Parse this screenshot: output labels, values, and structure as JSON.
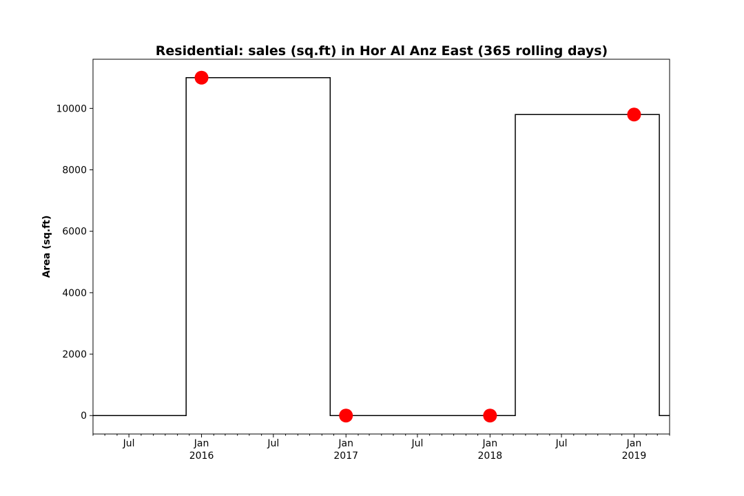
{
  "chart_data": {
    "type": "line",
    "title": "Residential: sales (sq.ft) in Hor Al Anz East (365 rolling days)",
    "xlabel": "",
    "ylabel": "Area (sq.ft)",
    "xlim": [
      "2015-04-01",
      "2019-04-01"
    ],
    "ylim": [
      -600,
      11600
    ],
    "grid": false,
    "yticks": [
      0,
      2000,
      4000,
      6000,
      8000,
      10000
    ],
    "xticks_major": [
      {
        "date": "2015-07-01",
        "label": "Jul",
        "sublabel": ""
      },
      {
        "date": "2016-01-01",
        "label": "Jan",
        "sublabel": "2016"
      },
      {
        "date": "2016-07-01",
        "label": "Jul",
        "sublabel": ""
      },
      {
        "date": "2017-01-01",
        "label": "Jan",
        "sublabel": "2017"
      },
      {
        "date": "2017-07-01",
        "label": "Jul",
        "sublabel": ""
      },
      {
        "date": "2018-01-01",
        "label": "Jan",
        "sublabel": "2018"
      },
      {
        "date": "2018-07-01",
        "label": "Jul",
        "sublabel": ""
      },
      {
        "date": "2019-01-01",
        "label": "Jan",
        "sublabel": "2019"
      }
    ],
    "series": [
      {
        "style": "step",
        "color": "#000000",
        "points": [
          {
            "x": "2015-04-01",
            "y": 0
          },
          {
            "x": "2015-11-23",
            "y": 0
          },
          {
            "x": "2015-11-23",
            "y": 11000
          },
          {
            "x": "2016-11-22",
            "y": 11000
          },
          {
            "x": "2016-11-22",
            "y": 0
          },
          {
            "x": "2018-03-06",
            "y": 0
          },
          {
            "x": "2018-03-06",
            "y": 9800
          },
          {
            "x": "2019-03-06",
            "y": 9800
          },
          {
            "x": "2019-03-06",
            "y": 0
          },
          {
            "x": "2019-04-01",
            "y": 0
          }
        ]
      },
      {
        "style": "markers",
        "color": "#ff0000",
        "points": [
          {
            "x": "2016-01-01",
            "y": 11000
          },
          {
            "x": "2017-01-01",
            "y": 0
          },
          {
            "x": "2018-01-01",
            "y": 0
          },
          {
            "x": "2019-01-01",
            "y": 9800
          }
        ]
      }
    ]
  }
}
